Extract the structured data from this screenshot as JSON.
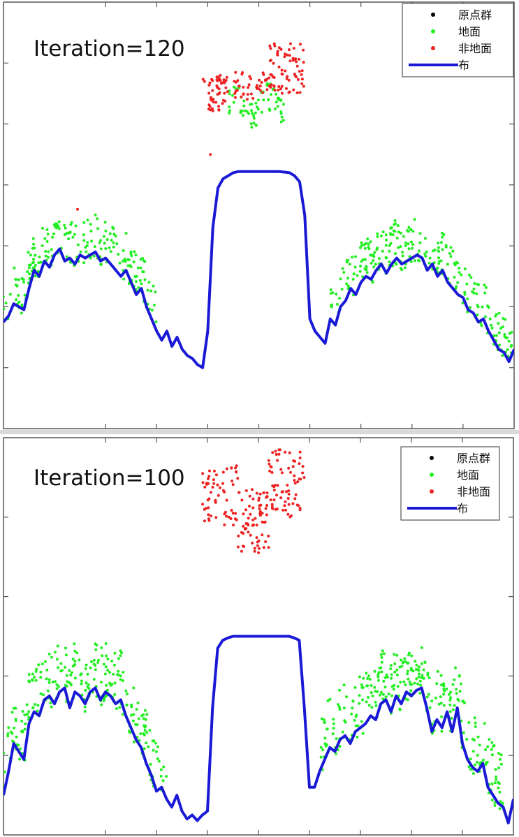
{
  "colors": {
    "original_points": "#000000",
    "ground": "#22ee22",
    "non_ground": "#ee2222",
    "cloth": "#1a1ad6",
    "axis": "#555555"
  },
  "chart_data": [
    {
      "type": "scatter",
      "annotation": "Iteration=120",
      "legend_position": "top-right",
      "legend": [
        {
          "label": "原点群",
          "kind": "point",
          "color": "#000000"
        },
        {
          "label": "地面",
          "kind": "point",
          "color": "#22ee22"
        },
        {
          "label": "非地面",
          "kind": "point",
          "color": "#ee2222"
        },
        {
          "label": "布",
          "kind": "line",
          "color": "#1a1ad6"
        }
      ],
      "xlim": [
        0,
        100
      ],
      "ylim": [
        0,
        7
      ],
      "x_ticks": [
        20,
        30,
        40,
        50,
        60,
        70,
        80,
        90
      ],
      "y_ticks": [
        1,
        2,
        3,
        4,
        5,
        6
      ],
      "grid": false,
      "series": [
        {
          "name": "布",
          "kind": "line",
          "x": [
            0,
            1,
            2,
            3,
            4,
            5,
            6,
            7,
            8,
            9,
            10,
            11,
            12,
            13,
            14,
            15,
            16,
            17,
            18,
            19,
            20,
            21,
            22,
            23,
            24,
            25,
            26,
            27,
            28,
            29,
            30,
            31,
            32,
            33,
            34,
            35,
            36,
            37,
            38,
            39,
            40,
            41,
            42,
            43,
            44,
            45,
            46,
            47,
            48,
            49,
            50,
            51,
            52,
            53,
            54,
            55,
            56,
            57,
            58,
            59,
            60,
            61,
            62,
            63,
            64,
            65,
            66,
            67,
            68,
            69,
            70,
            71,
            72,
            73,
            74,
            75,
            76,
            77,
            78,
            79,
            80,
            81,
            82,
            83,
            84,
            85,
            86,
            87,
            88,
            89,
            90,
            91,
            92,
            93,
            94,
            95,
            96,
            97,
            98,
            99,
            100
          ],
          "y": [
            1.75,
            1.85,
            2.05,
            2.0,
            1.95,
            2.3,
            2.6,
            2.5,
            2.75,
            2.65,
            2.85,
            2.95,
            2.75,
            2.8,
            2.7,
            2.85,
            2.8,
            2.85,
            2.9,
            2.75,
            2.8,
            2.7,
            2.6,
            2.5,
            2.6,
            2.4,
            2.2,
            2.3,
            2.0,
            1.8,
            1.6,
            1.45,
            1.6,
            1.35,
            1.5,
            1.3,
            1.2,
            1.15,
            1.05,
            1.0,
            1.6,
            3.3,
            3.95,
            4.1,
            4.15,
            4.2,
            4.22,
            4.22,
            4.22,
            4.22,
            4.22,
            4.22,
            4.22,
            4.22,
            4.22,
            4.21,
            4.2,
            4.15,
            4.05,
            3.5,
            1.8,
            1.6,
            1.5,
            1.4,
            1.8,
            1.7,
            2.0,
            2.1,
            2.3,
            2.2,
            2.4,
            2.5,
            2.45,
            2.6,
            2.7,
            2.55,
            2.7,
            2.8,
            2.7,
            2.75,
            2.8,
            2.85,
            2.8,
            2.6,
            2.7,
            2.5,
            2.6,
            2.4,
            2.3,
            2.2,
            2.15,
            1.95,
            1.9,
            1.75,
            1.8,
            1.6,
            1.45,
            1.3,
            1.25,
            1.1,
            1.3
          ]
        }
      ]
    },
    {
      "type": "scatter",
      "annotation": "Iteration=100",
      "legend_position": "top-right",
      "legend": [
        {
          "label": "原点群",
          "kind": "point",
          "color": "#000000"
        },
        {
          "label": "地面",
          "kind": "point",
          "color": "#22ee22"
        },
        {
          "label": "非地面",
          "kind": "point",
          "color": "#ee2222"
        },
        {
          "label": "布",
          "kind": "line",
          "color": "#1a1ad6"
        }
      ],
      "xlim": [
        0,
        100
      ],
      "ylim": [
        0,
        5
      ],
      "x_ticks": [
        20,
        30,
        40,
        50,
        60,
        70,
        80,
        90
      ],
      "y_ticks": [
        1,
        2,
        3,
        4
      ],
      "grid": false,
      "series": [
        {
          "name": "布",
          "kind": "line",
          "x": [
            0,
            1,
            2,
            3,
            4,
            5,
            6,
            7,
            8,
            9,
            10,
            11,
            12,
            13,
            14,
            15,
            16,
            17,
            18,
            19,
            20,
            21,
            22,
            23,
            24,
            25,
            26,
            27,
            28,
            29,
            30,
            31,
            32,
            33,
            34,
            35,
            36,
            37,
            38,
            39,
            40,
            41,
            42,
            43,
            44,
            45,
            46,
            47,
            48,
            49,
            50,
            51,
            52,
            53,
            54,
            55,
            56,
            57,
            58,
            59,
            60,
            61,
            62,
            63,
            64,
            65,
            66,
            67,
            68,
            69,
            70,
            71,
            72,
            73,
            74,
            75,
            76,
            77,
            78,
            79,
            80,
            81,
            82,
            83,
            84,
            85,
            86,
            87,
            88,
            89,
            90,
            91,
            92,
            93,
            94,
            95,
            96,
            97,
            98,
            99,
            100
          ],
          "y": [
            0.5,
            0.8,
            1.15,
            1.05,
            0.95,
            1.4,
            1.55,
            1.5,
            1.7,
            1.75,
            1.65,
            1.8,
            1.85,
            1.6,
            1.8,
            1.75,
            1.65,
            1.8,
            1.85,
            1.7,
            1.8,
            1.75,
            1.65,
            1.7,
            1.5,
            1.35,
            1.2,
            1.1,
            0.9,
            0.75,
            0.55,
            0.6,
            0.45,
            0.35,
            0.5,
            0.3,
            0.2,
            0.25,
            0.18,
            0.25,
            0.3,
            1.6,
            2.35,
            2.45,
            2.48,
            2.5,
            2.5,
            2.5,
            2.5,
            2.5,
            2.5,
            2.5,
            2.5,
            2.5,
            2.5,
            2.5,
            2.5,
            2.48,
            2.45,
            1.6,
            0.6,
            0.6,
            0.8,
            0.95,
            1.1,
            1.05,
            1.2,
            1.25,
            1.15,
            1.3,
            1.35,
            1.4,
            1.5,
            1.45,
            1.65,
            1.7,
            1.55,
            1.75,
            1.65,
            1.8,
            1.75,
            1.82,
            1.85,
            1.6,
            1.3,
            1.45,
            1.35,
            1.55,
            1.3,
            1.6,
            1.15,
            0.95,
            0.85,
            0.8,
            0.9,
            0.6,
            0.5,
            0.4,
            0.35,
            0.15,
            0.45
          ]
        }
      ]
    }
  ]
}
